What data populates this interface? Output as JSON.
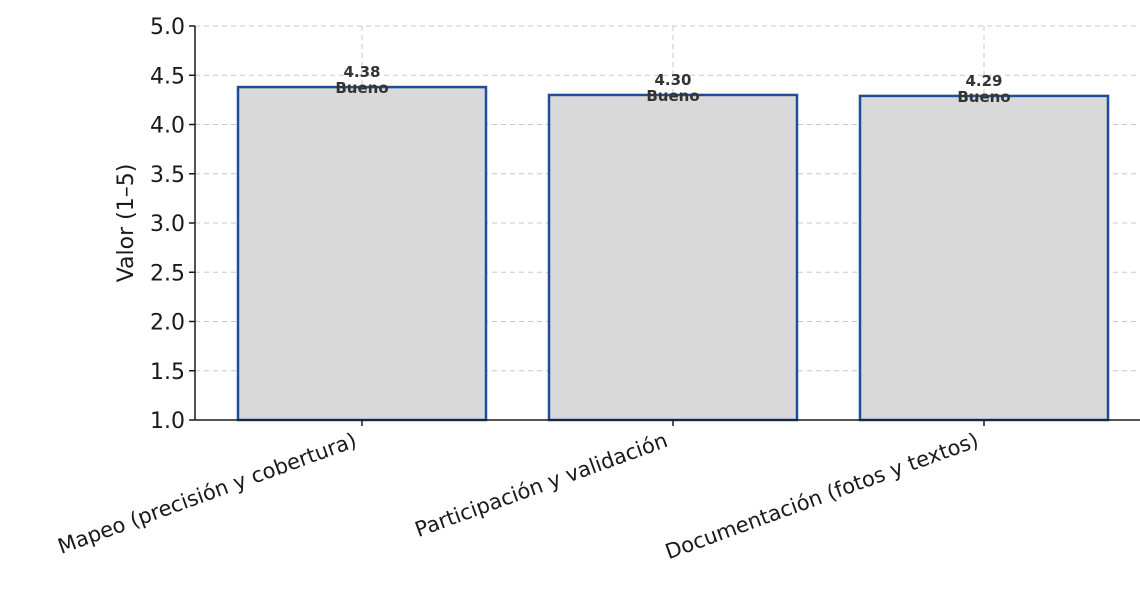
{
  "chart_data": {
    "type": "bar",
    "title": "",
    "xlabel": "",
    "ylabel": "Valor (1–5)",
    "ylim": [
      1.0,
      5.0
    ],
    "yticks": [
      "1.0",
      "1.5",
      "2.0",
      "2.5",
      "3.0",
      "3.5",
      "4.0",
      "4.5",
      "5.0"
    ],
    "categories": [
      "Mapeo (precisión y cobertura)",
      "Participación y validación",
      "Documentación (fotos y textos)"
    ],
    "values": [
      4.38,
      4.3,
      4.29
    ],
    "value_labels": [
      "4.38",
      "4.30",
      "4.29"
    ],
    "rating_labels": [
      "Bueno",
      "Bueno",
      "Bueno"
    ],
    "grid": true,
    "colors": {
      "bar_fill": "#d9d9d9",
      "bar_edge": "#1f4e99",
      "grid": "#c8c8c8"
    }
  }
}
